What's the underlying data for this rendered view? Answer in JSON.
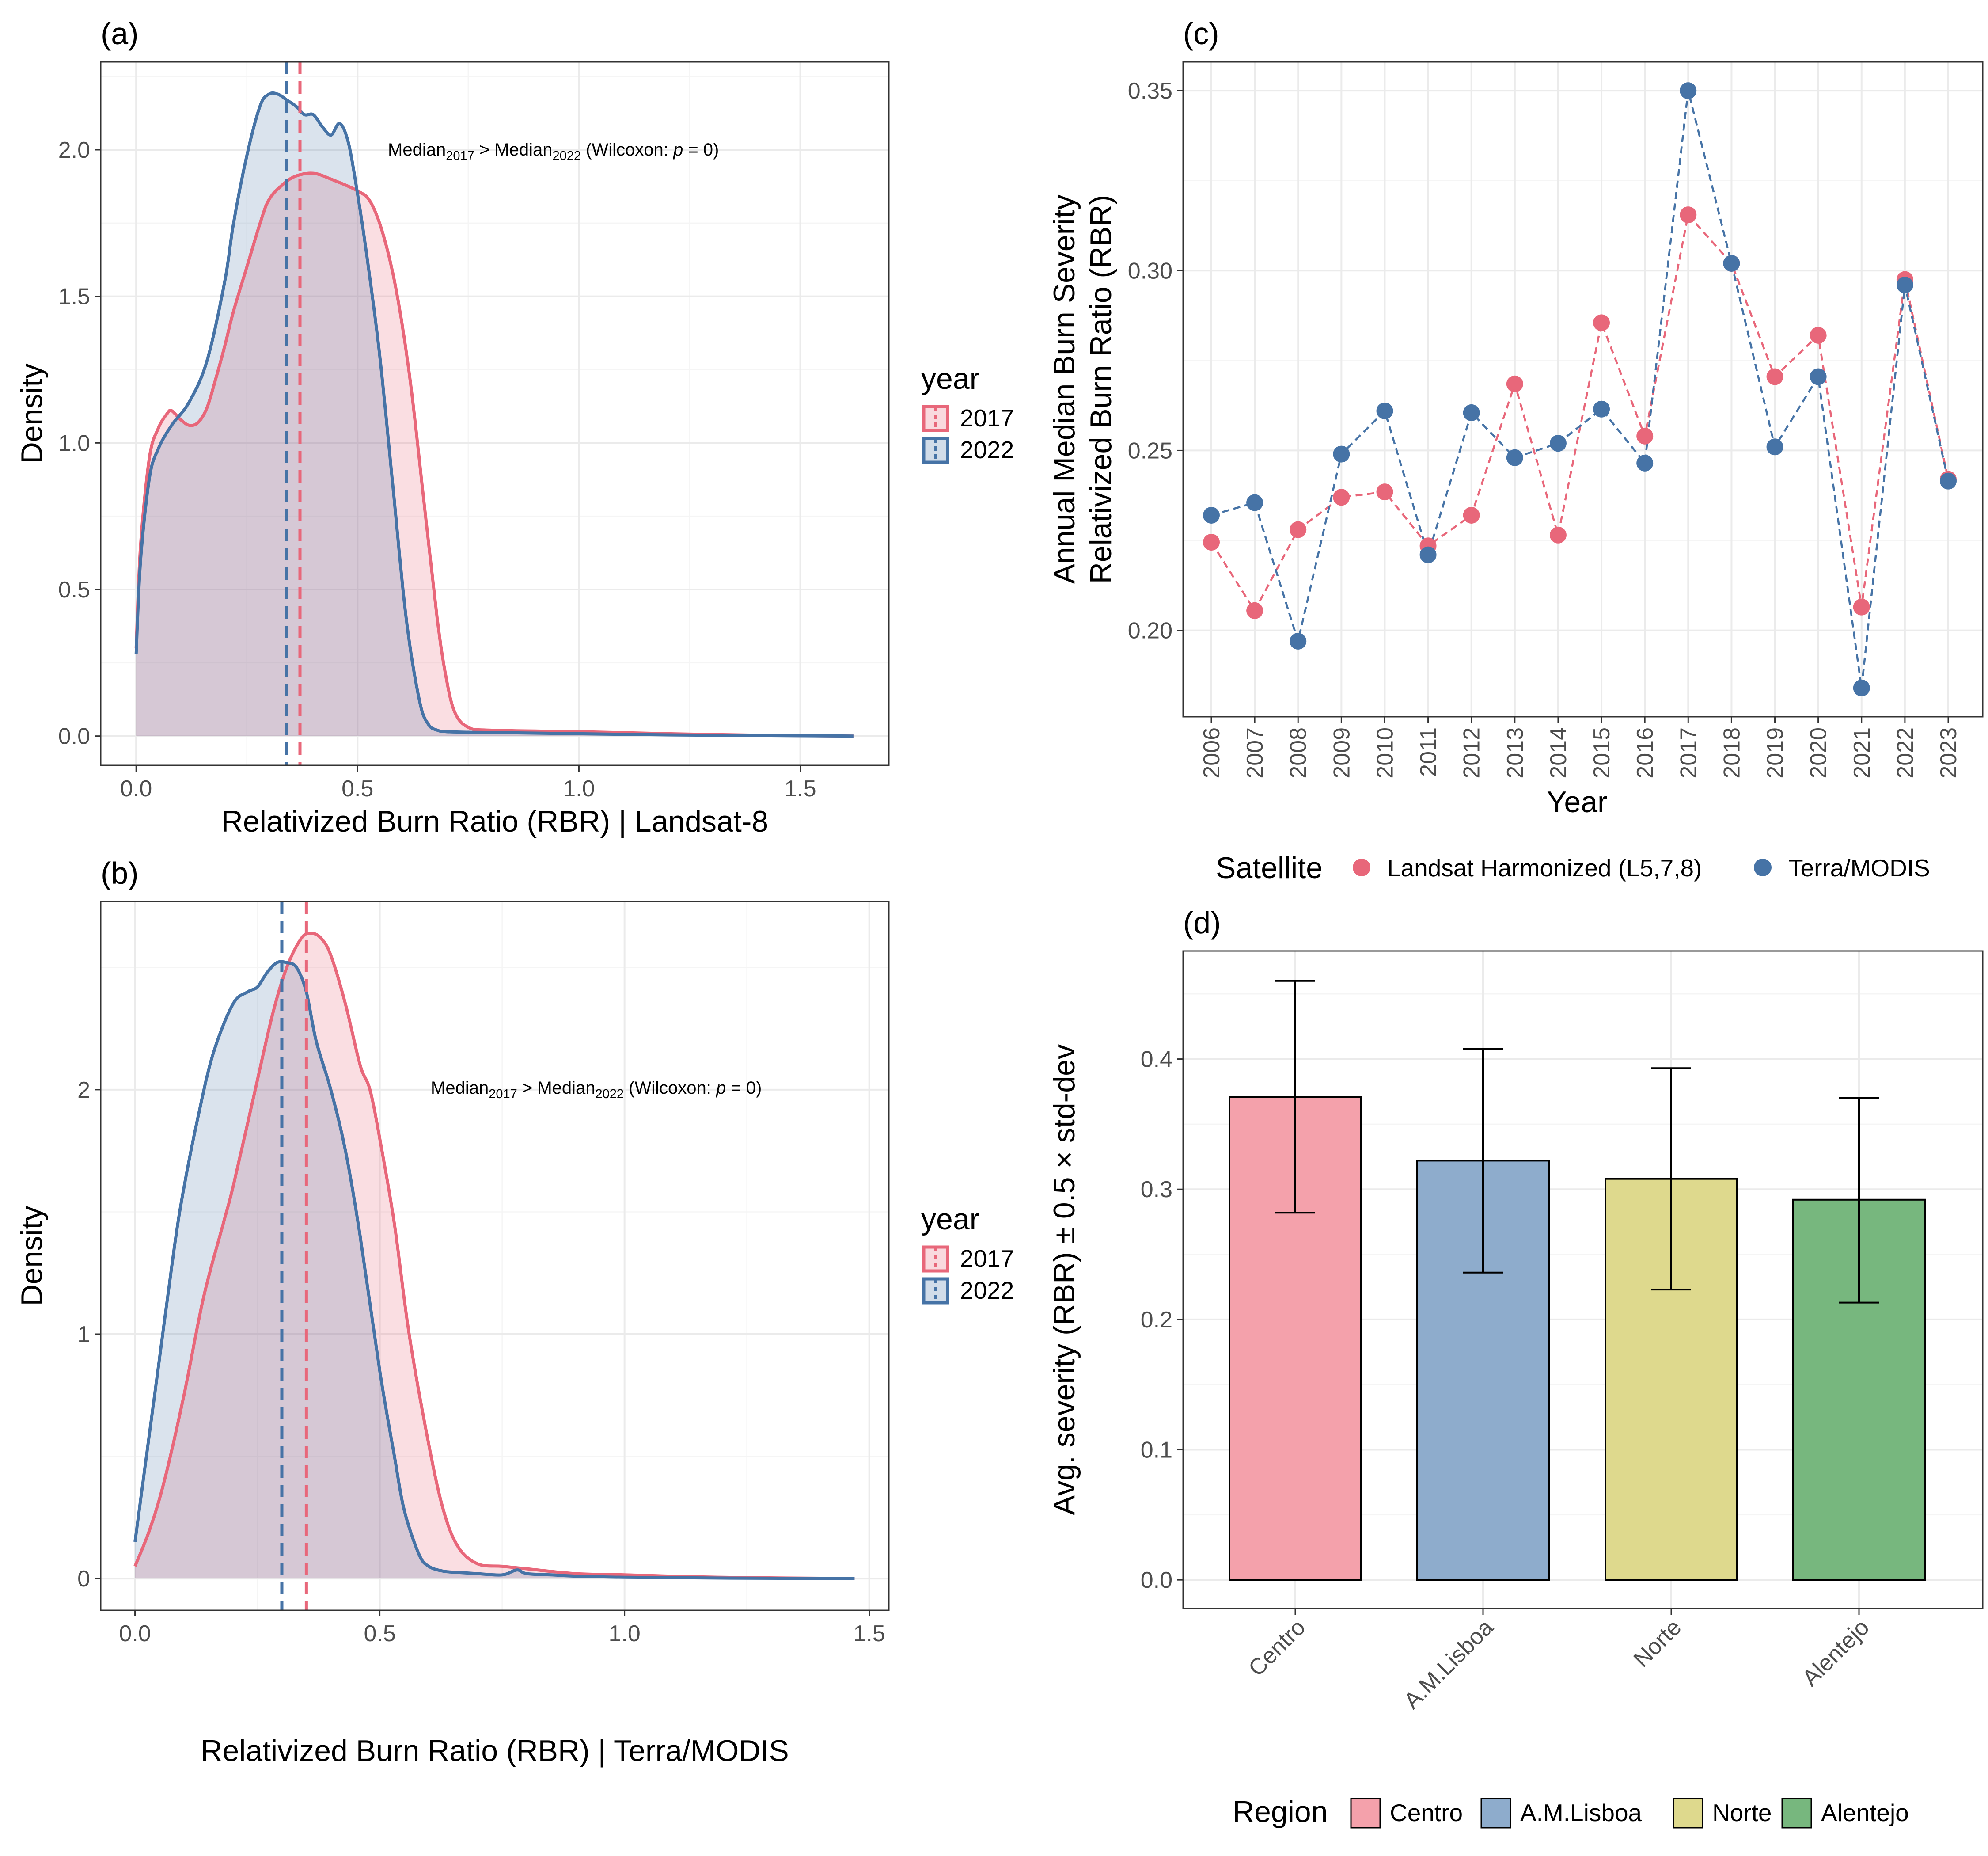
{
  "colors": {
    "y2017": "#e8677a",
    "y2022": "#4673a6",
    "landsat": "#e8677a",
    "modis": "#4673a6",
    "centro": "#f4a1ab",
    "lisboa": "#8eaccc",
    "norte": "#ded98d",
    "alentejo": "#77b77e"
  },
  "chart_data": [
    {
      "panel": "(a)",
      "type": "area",
      "title": "",
      "xlabel": "Relativized Burn Ratio (RBR) | Landsat-8",
      "ylabel": "Density",
      "xlim": [
        -0.08,
        1.7
      ],
      "ylim": [
        -0.1,
        2.3
      ],
      "xticks": [
        0.0,
        0.5,
        1.0,
        1.5
      ],
      "xtick_labels": [
        "0.0",
        "0.5",
        "1.0",
        "1.5"
      ],
      "yticks": [
        0.0,
        0.5,
        1.0,
        1.5,
        2.0
      ],
      "ytick_labels": [
        "0.0",
        "0.5",
        "1.0",
        "1.5",
        "2.0"
      ],
      "legend_title": "year",
      "legend_labels": [
        "2017",
        "2022"
      ],
      "annotation": {
        "median_label": "Median",
        "sub_a": "2017",
        "gt": " > ",
        "sub_b": "2022",
        "test": " (Wilcoxon:  ",
        "p": "p",
        "p_value": " = 0)"
      },
      "series": [
        {
          "name": "2017",
          "median": 0.37,
          "x": [
            0,
            0.01,
            0.03,
            0.05,
            0.07,
            0.08,
            0.1,
            0.12,
            0.14,
            0.16,
            0.18,
            0.2,
            0.22,
            0.25,
            0.28,
            0.3,
            0.33,
            0.36,
            0.4,
            0.44,
            0.5,
            0.53,
            0.56,
            0.59,
            0.62,
            0.65,
            0.68,
            0.7,
            0.72,
            0.75,
            0.8,
            1.0,
            1.2,
            1.4,
            1.62
          ],
          "values": [
            0.3,
            0.65,
            0.95,
            1.05,
            1.1,
            1.11,
            1.08,
            1.06,
            1.07,
            1.12,
            1.22,
            1.33,
            1.45,
            1.6,
            1.75,
            1.83,
            1.88,
            1.91,
            1.92,
            1.9,
            1.86,
            1.82,
            1.7,
            1.5,
            1.2,
            0.8,
            0.4,
            0.2,
            0.08,
            0.03,
            0.02,
            0.015,
            0.008,
            0.003,
            0.0
          ]
        },
        {
          "name": "2022",
          "median": 0.34,
          "x": [
            0,
            0.01,
            0.03,
            0.05,
            0.08,
            0.12,
            0.16,
            0.2,
            0.22,
            0.25,
            0.28,
            0.3,
            0.32,
            0.34,
            0.36,
            0.38,
            0.4,
            0.42,
            0.44,
            0.46,
            0.48,
            0.5,
            0.52,
            0.55,
            0.58,
            0.61,
            0.64,
            0.66,
            0.68,
            0.7,
            0.75,
            0.8,
            1.0,
            1.2,
            1.4,
            1.62
          ],
          "values": [
            0.28,
            0.6,
            0.88,
            0.98,
            1.06,
            1.14,
            1.28,
            1.55,
            1.75,
            1.98,
            2.15,
            2.19,
            2.19,
            2.17,
            2.15,
            2.12,
            2.12,
            2.08,
            2.05,
            2.09,
            2.02,
            1.85,
            1.65,
            1.3,
            0.85,
            0.4,
            0.12,
            0.04,
            0.02,
            0.015,
            0.013,
            0.012,
            0.008,
            0.004,
            0.002,
            0.0
          ]
        }
      ]
    },
    {
      "panel": "(b)",
      "type": "area",
      "title": "",
      "xlabel": "Relativized Burn Ratio (RBR) | Terra/MODIS",
      "ylabel": "Density",
      "xlim": [
        -0.07,
        1.54
      ],
      "ylim": [
        -0.13,
        2.77
      ],
      "xticks": [
        0.0,
        0.5,
        1.0,
        1.5
      ],
      "xtick_labels": [
        "0.0",
        "0.5",
        "1.0",
        "1.5"
      ],
      "yticks": [
        0,
        1,
        2
      ],
      "ytick_labels": [
        "0",
        "1",
        "2"
      ],
      "legend_title": "year",
      "legend_labels": [
        "2017",
        "2022"
      ],
      "annotation": {
        "median_label": "Median",
        "sub_a": "2017",
        "gt": " > ",
        "sub_b": "2022",
        "test": " (Wilcoxon:  ",
        "p": "p",
        "p_value": " = 0)"
      },
      "series": [
        {
          "name": "2017",
          "median": 0.35,
          "x": [
            0,
            0.03,
            0.06,
            0.1,
            0.14,
            0.18,
            0.2,
            0.24,
            0.28,
            0.31,
            0.34,
            0.36,
            0.38,
            0.4,
            0.43,
            0.46,
            0.48,
            0.5,
            0.53,
            0.56,
            0.6,
            0.63,
            0.66,
            0.7,
            0.75,
            0.8,
            0.9,
            1.0,
            1.2,
            1.47
          ],
          "values": [
            0.05,
            0.2,
            0.4,
            0.75,
            1.15,
            1.45,
            1.6,
            1.95,
            2.3,
            2.5,
            2.62,
            2.64,
            2.62,
            2.55,
            2.35,
            2.1,
            2.0,
            1.8,
            1.45,
            1.0,
            0.55,
            0.28,
            0.13,
            0.06,
            0.05,
            0.04,
            0.02,
            0.015,
            0.005,
            0.0
          ]
        },
        {
          "name": "2022",
          "median": 0.3,
          "x": [
            0,
            0.02,
            0.05,
            0.08,
            0.1,
            0.13,
            0.16,
            0.2,
            0.23,
            0.25,
            0.27,
            0.29,
            0.31,
            0.33,
            0.35,
            0.37,
            0.4,
            0.43,
            0.46,
            0.5,
            0.53,
            0.55,
            0.58,
            0.6,
            0.63,
            0.66,
            0.7,
            0.75,
            0.78,
            0.8,
            0.85,
            0.9,
            1.0,
            1.2,
            1.47
          ],
          "values": [
            0.15,
            0.45,
            0.9,
            1.35,
            1.6,
            1.9,
            2.15,
            2.35,
            2.4,
            2.42,
            2.48,
            2.52,
            2.52,
            2.5,
            2.4,
            2.2,
            2.0,
            1.75,
            1.4,
            0.85,
            0.5,
            0.28,
            0.1,
            0.05,
            0.03,
            0.025,
            0.02,
            0.015,
            0.035,
            0.02,
            0.015,
            0.01,
            0.005,
            0.002,
            0.0
          ]
        }
      ]
    },
    {
      "panel": "(c)",
      "type": "line",
      "title": "",
      "xlabel": "Year",
      "ylabel_line1": "Annual Median Burn Severity",
      "ylabel_line2": "Relativized Burn Ratio (RBR)",
      "categories": [
        "2006",
        "2007",
        "2008",
        "2009",
        "2010",
        "2011",
        "2012",
        "2013",
        "2014",
        "2015",
        "2016",
        "2017",
        "2018",
        "2019",
        "2020",
        "2021",
        "2022",
        "2023"
      ],
      "ylim": [
        0.176,
        0.358
      ],
      "yticks": [
        0.2,
        0.25,
        0.3,
        0.35
      ],
      "ytick_labels": [
        "0.20",
        "0.25",
        "0.30",
        "0.35"
      ],
      "legend_title": "Satellite",
      "series": [
        {
          "name": "Landsat Harmonized (L5,7,8)",
          "values": [
            0.2245,
            0.2055,
            0.228,
            0.237,
            0.2385,
            0.2235,
            0.232,
            0.2685,
            0.2265,
            0.2855,
            0.254,
            0.3155,
            0.302,
            0.2705,
            0.282,
            0.2065,
            0.2975,
            0.242
          ]
        },
        {
          "name": "Terra/MODIS",
          "values": [
            0.232,
            0.2355,
            0.197,
            0.249,
            0.261,
            0.221,
            0.2605,
            0.248,
            0.252,
            0.2615,
            0.2465,
            0.35,
            0.302,
            0.251,
            0.2705,
            0.184,
            0.296,
            0.2415
          ]
        }
      ]
    },
    {
      "panel": "(d)",
      "type": "bar",
      "title": "",
      "xlabel": "",
      "ylabel": "Avg. severity (RBR) ± 0.5 × std-dev",
      "categories": [
        "Centro",
        "A.M.Lisboa",
        "Norte",
        "Alentejo"
      ],
      "values": [
        0.371,
        0.322,
        0.308,
        0.292
      ],
      "error_low": [
        0.282,
        0.236,
        0.223,
        0.213
      ],
      "error_high": [
        0.46,
        0.408,
        0.393,
        0.37
      ],
      "ylim": [
        -0.022,
        0.483
      ],
      "yticks": [
        0.0,
        0.1,
        0.2,
        0.3,
        0.4
      ],
      "ytick_labels": [
        "0.0",
        "0.1",
        "0.2",
        "0.3",
        "0.4"
      ],
      "legend_title": "Region",
      "legend_labels": [
        "Centro",
        "A.M.Lisboa",
        "Norte",
        "Alentejo"
      ]
    }
  ]
}
